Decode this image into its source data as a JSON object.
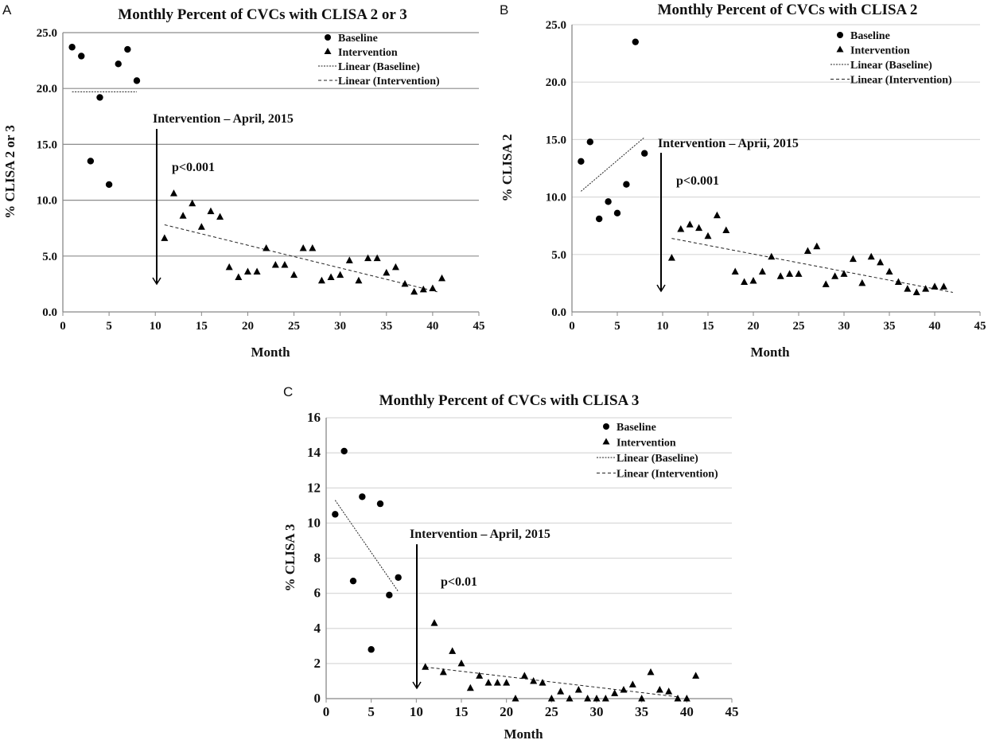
{
  "chart_data": [
    {
      "panel": "A",
      "type": "scatter",
      "title": "Monthly Percent of CVCs with CLISA 2 or 3",
      "xlabel": "Month",
      "ylabel": "%  CLISA 2 or 3",
      "xlim": [
        0,
        45
      ],
      "ylim": [
        0,
        25
      ],
      "xticks": [
        "0",
        "5",
        "10",
        "15",
        "20",
        "25",
        "30",
        "35",
        "40",
        "45"
      ],
      "yticks": [
        "0.0",
        "5.0",
        "10.0",
        "15.0",
        "20.0",
        "25.0"
      ],
      "grid": true,
      "gridColor": "#8c8c8c",
      "legend_position": "top-right",
      "legend": [
        "Baseline",
        "Intervention",
        "Linear (Baseline)",
        "Linear (Intervention)"
      ],
      "annotation": "Intervention – April, 2015",
      "pvalue": "p<0.001",
      "intervention_month": 10,
      "series": [
        {
          "name": "Baseline",
          "marker": "circle",
          "x": [
            1,
            2,
            3,
            4,
            5,
            6,
            7,
            8
          ],
          "y": [
            23.7,
            22.9,
            13.5,
            19.2,
            11.4,
            22.2,
            23.5,
            20.7
          ]
        },
        {
          "name": "Intervention",
          "marker": "triangle",
          "x": [
            11,
            12,
            13,
            14,
            15,
            16,
            17,
            18,
            19,
            20,
            21,
            22,
            23,
            24,
            25,
            26,
            27,
            28,
            29,
            30,
            31,
            32,
            33,
            34,
            35,
            36,
            37,
            38,
            39,
            40,
            41
          ],
          "y": [
            6.6,
            10.6,
            8.6,
            9.7,
            7.6,
            9.0,
            8.5,
            4.0,
            3.1,
            3.6,
            3.6,
            5.7,
            4.2,
            4.2,
            3.3,
            5.7,
            5.7,
            2.8,
            3.1,
            3.3,
            4.6,
            2.8,
            4.8,
            4.8,
            3.5,
            4.0,
            2.5,
            1.8,
            2.0,
            2.1,
            3.0
          ]
        }
      ],
      "trendlines": [
        {
          "name": "Linear (Baseline)",
          "style": "dotted",
          "x": [
            1,
            8
          ],
          "y": [
            19.7,
            19.7
          ]
        },
        {
          "name": "Linear (Intervention)",
          "style": "dashed",
          "x": [
            11,
            40.5
          ],
          "y": [
            7.8,
            1.8
          ]
        }
      ]
    },
    {
      "panel": "B",
      "type": "scatter",
      "title": "Monthly Percent of CVCs with CLISA 2",
      "xlabel": "Month",
      "ylabel": "% CLISA 2",
      "xlim": [
        0,
        45
      ],
      "ylim": [
        0,
        25
      ],
      "xticks": [
        "0",
        "5",
        "10",
        "15",
        "20",
        "25",
        "30",
        "35",
        "40",
        "45"
      ],
      "yticks": [
        "0.0",
        "5.0",
        "10.0",
        "15.0",
        "20.0",
        "25.0"
      ],
      "grid": true,
      "gridColor": "#d9d9d9",
      "legend_position": "top-right",
      "legend": [
        "Baseline",
        "Intervention",
        "Linear (Baseline)",
        "Linear (Intervention)"
      ],
      "annotation": "Intervention – Aprii, 2015",
      "pvalue": "p<0.001",
      "intervention_month": 10,
      "series": [
        {
          "name": "Baseline",
          "marker": "circle",
          "x": [
            1,
            2,
            3,
            4,
            5,
            6,
            7,
            8
          ],
          "y": [
            13.1,
            14.8,
            8.1,
            9.6,
            8.6,
            11.1,
            23.5,
            13.8
          ]
        },
        {
          "name": "Intervention",
          "marker": "triangle",
          "x": [
            11,
            12,
            13,
            14,
            15,
            16,
            17,
            18,
            19,
            20,
            21,
            22,
            23,
            24,
            25,
            26,
            27,
            28,
            29,
            30,
            31,
            32,
            33,
            34,
            35,
            36,
            37,
            38,
            39,
            40,
            41
          ],
          "y": [
            4.7,
            7.2,
            7.6,
            7.3,
            6.6,
            8.4,
            7.1,
            3.5,
            2.6,
            2.7,
            3.5,
            4.8,
            3.1,
            3.3,
            3.3,
            5.3,
            5.7,
            2.4,
            3.1,
            3.3,
            4.6,
            2.5,
            4.8,
            4.3,
            3.5,
            2.6,
            2.0,
            1.7,
            2.0,
            2.2,
            2.2
          ]
        }
      ],
      "trendlines": [
        {
          "name": "Linear (Baseline)",
          "style": "dotted",
          "x": [
            1,
            8
          ],
          "y": [
            10.5,
            15.2
          ]
        },
        {
          "name": "Linear (Intervention)",
          "style": "dashed",
          "x": [
            11,
            42
          ],
          "y": [
            6.4,
            1.7
          ]
        }
      ]
    },
    {
      "panel": "C",
      "type": "scatter",
      "title": "Monthly Percent of CVCs with CLISA 3",
      "xlabel": "Month",
      "ylabel": "% CLISA 3",
      "xlim": [
        0,
        45
      ],
      "ylim": [
        0,
        16
      ],
      "xticks": [
        "0",
        "5",
        "10",
        "15",
        "20",
        "25",
        "30",
        "35",
        "40",
        "45"
      ],
      "yticks": [
        "0",
        "2",
        "4",
        "6",
        "8",
        "10",
        "12",
        "14",
        "16"
      ],
      "grid": true,
      "gridColor": "#d9d9d9",
      "legend_position": "top-right",
      "legend": [
        "Baseline",
        "Intervention",
        "Linear (Baseline)",
        "Linear (Intervention)"
      ],
      "annotation": "Intervention – April, 2015",
      "pvalue": "p<0.01",
      "intervention_month": 10,
      "series": [
        {
          "name": "Baseline",
          "marker": "circle",
          "x": [
            1,
            2,
            3,
            4,
            5,
            6,
            7,
            8
          ],
          "y": [
            10.5,
            14.1,
            6.7,
            11.5,
            2.8,
            11.1,
            5.9,
            6.9
          ]
        },
        {
          "name": "Intervention",
          "marker": "triangle",
          "x": [
            11,
            12,
            13,
            14,
            15,
            16,
            17,
            18,
            19,
            20,
            21,
            22,
            23,
            24,
            25,
            26,
            27,
            28,
            29,
            30,
            31,
            32,
            33,
            34,
            35,
            36,
            37,
            38,
            39,
            40,
            41
          ],
          "y": [
            1.8,
            4.3,
            1.5,
            2.7,
            2.0,
            0.6,
            1.3,
            0.9,
            0.9,
            0.9,
            0,
            1.3,
            1.0,
            0.9,
            0,
            0.4,
            0,
            0.5,
            0,
            0,
            0,
            0.3,
            0.5,
            0.8,
            0,
            1.5,
            0.5,
            0.4,
            0,
            0,
            1.3
          ]
        }
      ],
      "trendlines": [
        {
          "name": "Linear (Baseline)",
          "style": "dotted",
          "x": [
            1,
            8
          ],
          "y": [
            11.3,
            6.1
          ]
        },
        {
          "name": "Linear (Intervention)",
          "style": "dashed",
          "x": [
            11,
            39
          ],
          "y": [
            1.8,
            0.1
          ]
        }
      ]
    }
  ]
}
